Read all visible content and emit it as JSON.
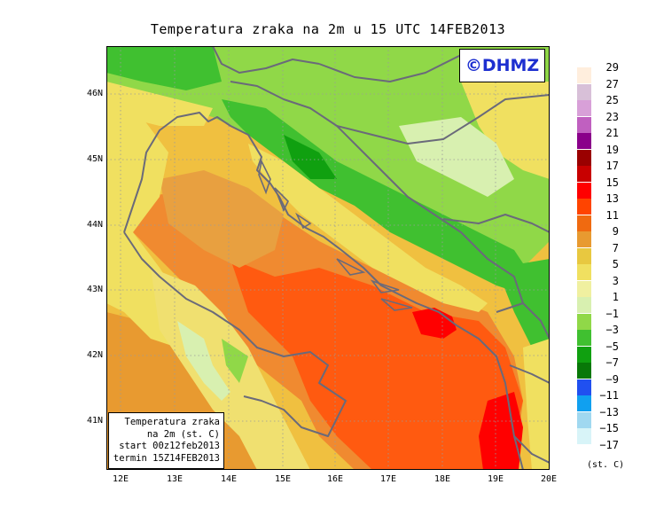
{
  "title": "Temperatura zraka na 2m u 15 UTC 14FEB2013",
  "logo": "©DHMZ",
  "lat_ticks": [
    "46N",
    "45N",
    "44N",
    "43N",
    "42N",
    "41N"
  ],
  "lon_ticks": [
    "12E",
    "13E",
    "14E",
    "15E",
    "16E",
    "17E",
    "18E",
    "19E",
    "20E"
  ],
  "info_box": {
    "line1": "Temperatura zraka",
    "line2": "na 2m (st. C)",
    "line3": "start 00z12feb2013",
    "line4": "termin 15Z14FEB2013"
  },
  "legend": {
    "labels": [
      "29",
      "27",
      "25",
      "23",
      "21",
      "19",
      "17",
      "15",
      "13",
      "11",
      "9",
      "7",
      "5",
      "3",
      "1",
      "−1",
      "−3",
      "−5",
      "−7",
      "−9",
      "−11",
      "−13",
      "−15",
      "−17"
    ],
    "colors": [
      "#ffeedd",
      "#d8c0d8",
      "#d8a0d8",
      "#c060c0",
      "#8a008a",
      "#9a0000",
      "#c80000",
      "#ff0000",
      "#ff4400",
      "#f06a10",
      "#e89a30",
      "#e8c840",
      "#f0e060",
      "#f0f0a0",
      "#d8f0b0",
      "#90d848",
      "#40c030",
      "#10a010",
      "#087808",
      "#2050f0",
      "#10a0f0",
      "#a0d8f0",
      "#d8f4f8",
      "#ffffff"
    ],
    "units": "(st. C)"
  }
}
